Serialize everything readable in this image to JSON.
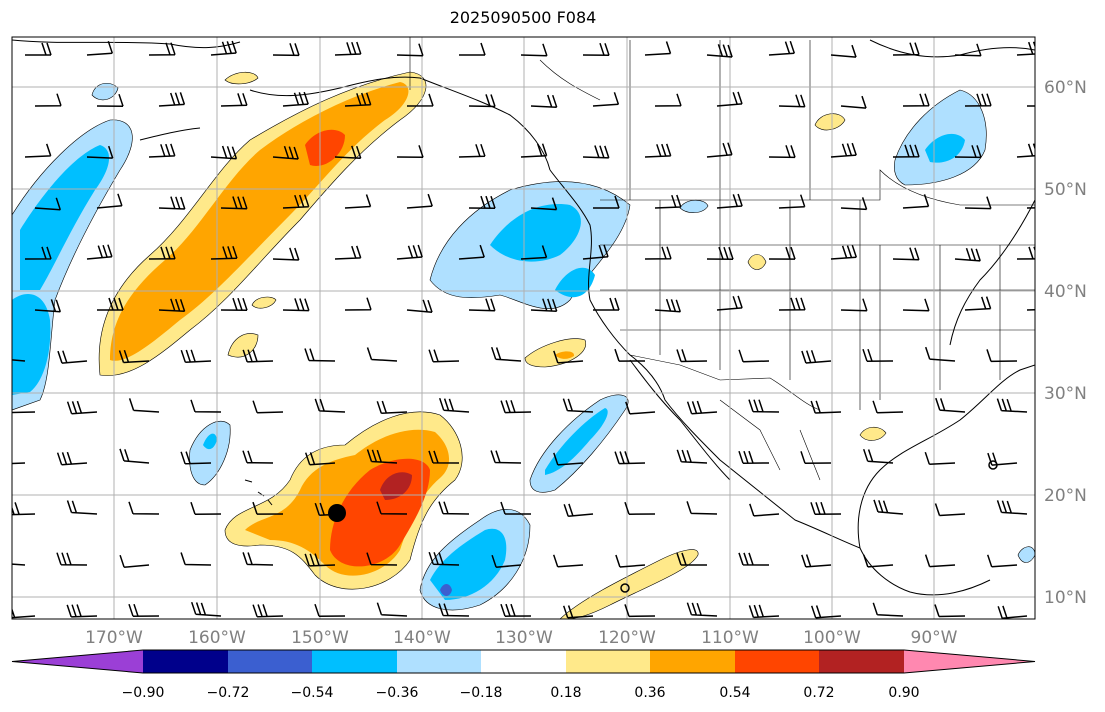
{
  "title": "2025090500 F084",
  "colors": {
    "land_line": "#000000",
    "grid": "#b0b0b0",
    "label": "#808080"
  },
  "longitude_labels": [
    "170°W",
    "160°W",
    "150°W",
    "140°W",
    "130°W",
    "120°W",
    "110°W",
    "100°W",
    "90°W"
  ],
  "latitude_labels": [
    "60°N",
    "50°N",
    "40°N",
    "30°N",
    "20°N",
    "10°N"
  ],
  "colorbar": {
    "ticks": [
      "−0.90",
      "−0.72",
      "−0.54",
      "−0.36",
      "−0.18",
      "0.18",
      "0.36",
      "0.54",
      "0.72",
      "0.90"
    ],
    "colors": [
      "#9b3fd6",
      "#00008b",
      "#3b5fd0",
      "#00bfff",
      "#afe0ff",
      "#ffffff",
      "#ffe98a",
      "#ffa500",
      "#ff4500",
      "#b22222",
      "#ff88b0"
    ]
  },
  "marker": "storm-center-dot"
}
